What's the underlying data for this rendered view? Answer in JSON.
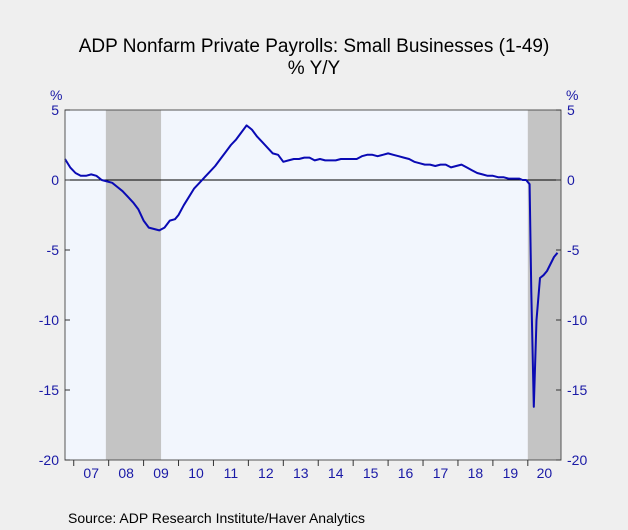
{
  "chart_data": {
    "type": "line",
    "title": "ADP Nonfarm Private Payrolls: Small Businesses (1-49)",
    "subtitle": "% Y/Y",
    "ylabel_left": "%",
    "ylabel_right": "%",
    "source": "Source:  ADP Research Institute/Haver Analytics",
    "ylim": [
      -20,
      5
    ],
    "xlim": [
      2006.75,
      2020.95
    ],
    "yticks": [
      5,
      0,
      -5,
      -10,
      -15,
      -20
    ],
    "ytick_labels": [
      "5",
      "0",
      "-5",
      "-10",
      "-15",
      "-20"
    ],
    "xtick_labels": [
      "07",
      "08",
      "09",
      "10",
      "11",
      "12",
      "13",
      "14",
      "15",
      "16",
      "17",
      "18",
      "19",
      "20"
    ],
    "grid": false,
    "zero_line": true,
    "recessions": [
      {
        "start": 2007.92,
        "end": 2009.5
      },
      {
        "start": 2020.0,
        "end": 2020.95
      }
    ],
    "colors": {
      "line": "#0a0ab4",
      "axis_text": "#1a1aa6",
      "plot_bg": "#f2f6fd",
      "recession": "#c4c4c4",
      "page_bg": "#efefef"
    },
    "series": [
      {
        "x": [
          2006.75,
          2006.9,
          2007.05,
          2007.2,
          2007.35,
          2007.5,
          2007.65,
          2007.8,
          2007.95,
          2008.1,
          2008.25,
          2008.4,
          2008.55,
          2008.7,
          2008.85,
          2009.0,
          2009.15,
          2009.3,
          2009.45,
          2009.6,
          2009.75,
          2009.9,
          2010.0,
          2010.15,
          2010.3,
          2010.45,
          2010.6,
          2010.75,
          2010.9,
          2011.05,
          2011.2,
          2011.35,
          2011.5,
          2011.65,
          2011.8,
          2011.95,
          2012.1,
          2012.25,
          2012.4,
          2012.55,
          2012.7,
          2012.85,
          2013.0,
          2013.15,
          2013.3,
          2013.45,
          2013.6,
          2013.75,
          2013.9,
          2014.05,
          2014.2,
          2014.35,
          2014.5,
          2014.65,
          2014.8,
          2014.95,
          2015.1,
          2015.25,
          2015.4,
          2015.55,
          2015.7,
          2015.85,
          2016.0,
          2016.15,
          2016.3,
          2016.45,
          2016.6,
          2016.75,
          2016.9,
          2017.05,
          2017.2,
          2017.35,
          2017.5,
          2017.65,
          2017.8,
          2017.95,
          2018.1,
          2018.25,
          2018.4,
          2018.55,
          2018.7,
          2018.85,
          2019.0,
          2019.15,
          2019.3,
          2019.45,
          2019.6,
          2019.75,
          2019.85,
          2019.95,
          2020.05,
          2020.1,
          2020.17,
          2020.25,
          2020.35,
          2020.45,
          2020.55,
          2020.65,
          2020.75,
          2020.85
        ],
        "values": [
          1.5,
          0.9,
          0.5,
          0.3,
          0.3,
          0.4,
          0.3,
          0.0,
          -0.1,
          -0.2,
          -0.5,
          -0.8,
          -1.2,
          -1.6,
          -2.1,
          -2.9,
          -3.4,
          -3.5,
          -3.6,
          -3.4,
          -2.9,
          -2.8,
          -2.5,
          -1.8,
          -1.2,
          -0.6,
          -0.2,
          0.2,
          0.6,
          1.0,
          1.5,
          2.0,
          2.5,
          2.9,
          3.4,
          3.9,
          3.6,
          3.1,
          2.7,
          2.3,
          1.9,
          1.8,
          1.3,
          1.4,
          1.5,
          1.5,
          1.6,
          1.6,
          1.4,
          1.5,
          1.4,
          1.4,
          1.4,
          1.5,
          1.5,
          1.5,
          1.5,
          1.7,
          1.8,
          1.8,
          1.7,
          1.8,
          1.9,
          1.8,
          1.7,
          1.6,
          1.5,
          1.3,
          1.2,
          1.1,
          1.1,
          1.0,
          1.1,
          1.1,
          0.9,
          1.0,
          1.1,
          0.9,
          0.7,
          0.5,
          0.4,
          0.3,
          0.3,
          0.2,
          0.2,
          0.1,
          0.1,
          0.1,
          0.0,
          0.0,
          -0.3,
          -8.0,
          -16.2,
          -10.0,
          -7.0,
          -6.8,
          -6.5,
          -6.0,
          -5.5,
          -5.2
        ]
      }
    ]
  }
}
